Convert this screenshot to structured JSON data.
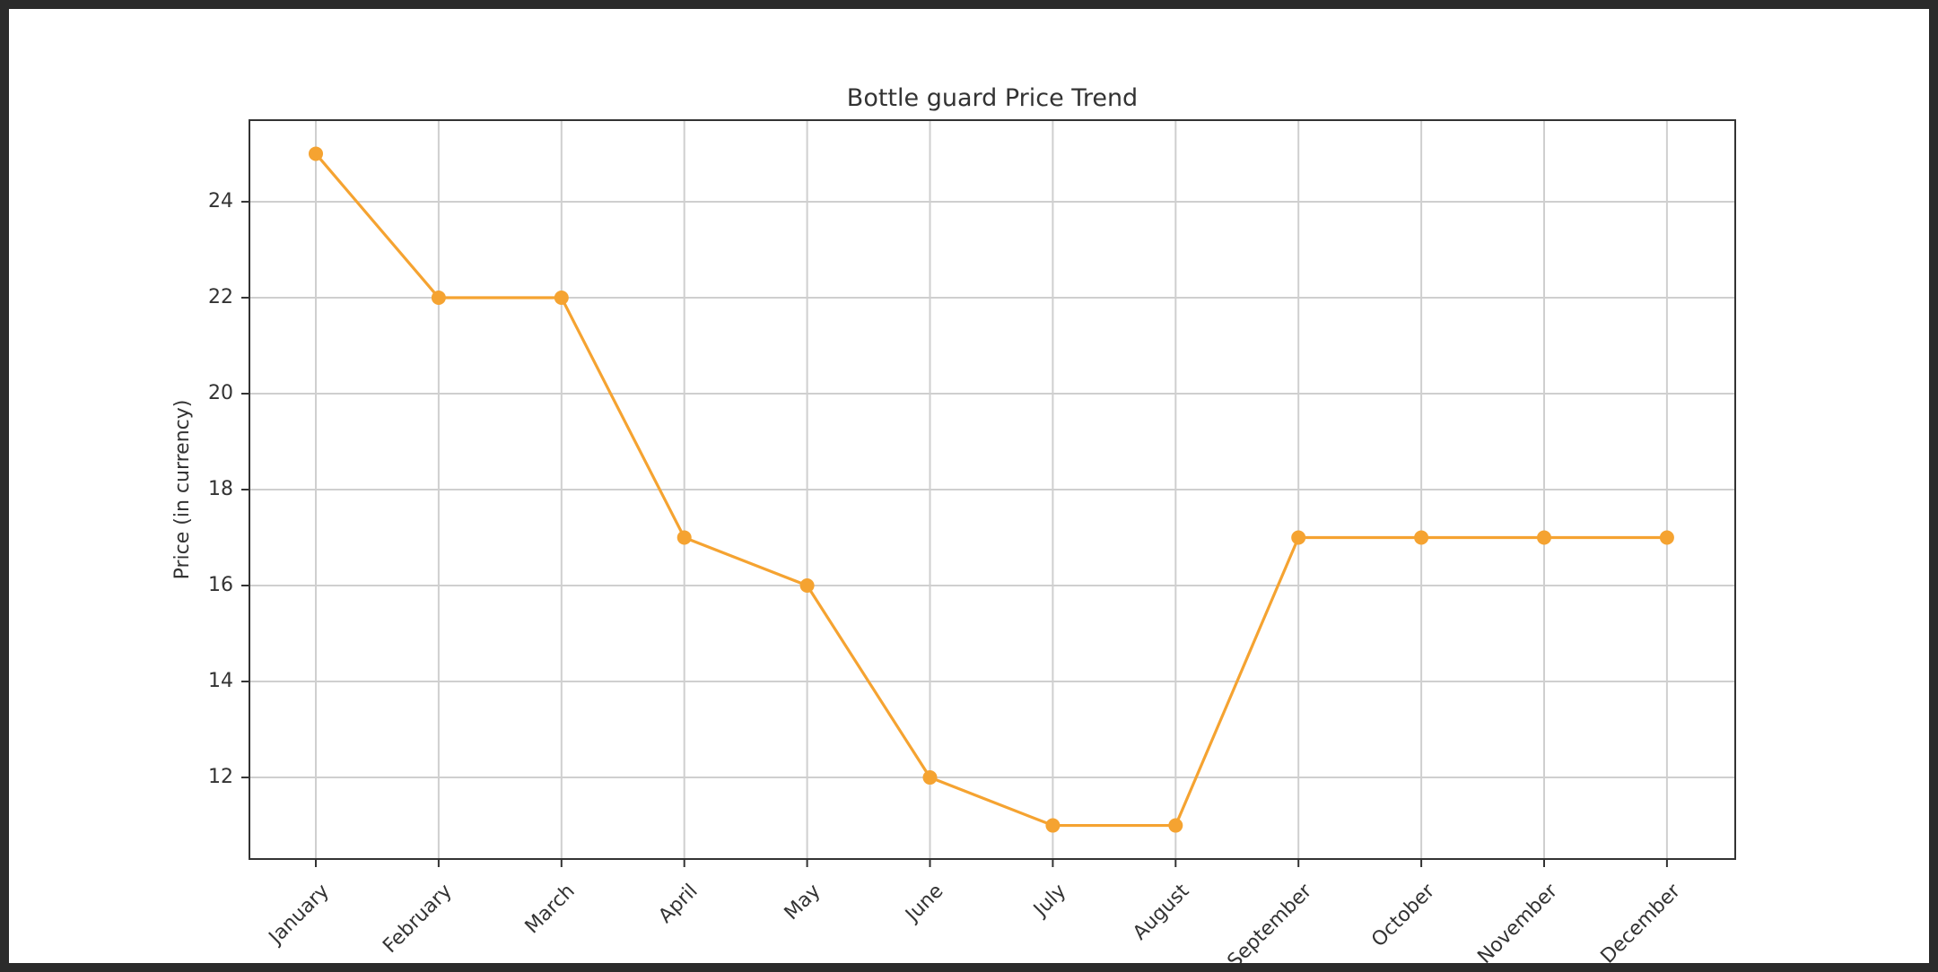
{
  "colors": {
    "series": "#f5a331",
    "grid": "#cfcfcf",
    "axes": "#333333",
    "background": "#ffffff"
  },
  "chart_data": {
    "type": "line",
    "title": "Bottle guard Price Trend",
    "xlabel": "",
    "ylabel": "Price (in currency)",
    "categories": [
      "January",
      "February",
      "March",
      "April",
      "May",
      "June",
      "July",
      "August",
      "September",
      "October",
      "November",
      "December"
    ],
    "series": [
      {
        "values": [
          25,
          22,
          22,
          17,
          16,
          12,
          11,
          11,
          17,
          17,
          17,
          17
        ]
      }
    ],
    "ylim": [
      10.3,
      25.7
    ],
    "yticks": [
      12,
      14,
      16,
      18,
      20,
      22,
      24
    ],
    "grid": true,
    "marker": "circle",
    "xtick_rotation": -45
  }
}
